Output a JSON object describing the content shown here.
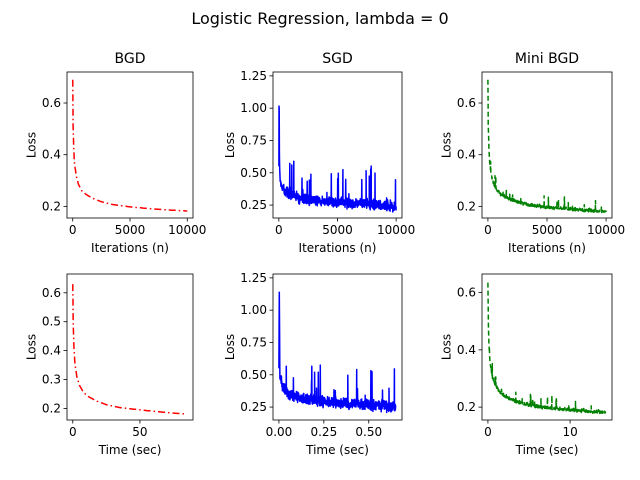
{
  "suptitle": "Logistic Regression, lambda = 0",
  "chart_data": [
    {
      "type": "line",
      "title": "BGD",
      "xlabel": "Iterations (n)",
      "ylabel": "Loss",
      "xlim": [
        -500,
        10500
      ],
      "ylim": [
        0.155,
        0.72
      ],
      "xticks": [
        0,
        5000,
        10000
      ],
      "xtick_labels": [
        "0",
        "5000",
        "10000"
      ],
      "yticks": [
        0.2,
        0.4,
        0.6
      ],
      "ytick_labels": [
        "0.2",
        "0.4",
        "0.6"
      ],
      "color": "#ff0000",
      "dash": "dashdot",
      "noise": 0,
      "x": [
        0,
        30,
        80,
        150,
        300,
        500,
        800,
        1200,
        1800,
        2500,
        3500,
        5000,
        6500,
        8000,
        10000
      ],
      "y": [
        0.69,
        0.52,
        0.43,
        0.37,
        0.32,
        0.285,
        0.26,
        0.245,
        0.23,
        0.218,
        0.207,
        0.198,
        0.192,
        0.187,
        0.182
      ]
    },
    {
      "type": "line",
      "title": "SGD",
      "xlabel": "Iterations (n)",
      "ylabel": "Loss",
      "xlim": [
        -500,
        10500
      ],
      "ylim": [
        0.15,
        1.28
      ],
      "xticks": [
        0,
        5000,
        10000
      ],
      "xtick_labels": [
        "0",
        "5000",
        "10000"
      ],
      "yticks": [
        0.25,
        0.5,
        0.75,
        1.0,
        1.25
      ],
      "ytick_labels": [
        "0.25",
        "0.50",
        "0.75",
        "1.00",
        "1.25"
      ],
      "color": "#0000ff",
      "dash": "solid",
      "noise": 1,
      "x": [
        0,
        20,
        50,
        100,
        200,
        400,
        600,
        900,
        1300,
        1800,
        2500,
        3500,
        5000,
        6500,
        8000,
        10000
      ],
      "y": [
        0.55,
        1.22,
        0.5,
        0.48,
        0.42,
        0.38,
        0.36,
        0.34,
        0.33,
        0.31,
        0.3,
        0.29,
        0.28,
        0.27,
        0.26,
        0.25
      ]
    },
    {
      "type": "line",
      "title": "Mini BGD",
      "xlabel": "Iterations (n)",
      "ylabel": "Loss",
      "xlim": [
        -500,
        10500
      ],
      "ylim": [
        0.155,
        0.72
      ],
      "xticks": [
        0,
        5000,
        10000
      ],
      "xtick_labels": [
        "0",
        "5000",
        "10000"
      ],
      "yticks": [
        0.2,
        0.4,
        0.6
      ],
      "ytick_labels": [
        "0.2",
        "0.4",
        "0.6"
      ],
      "color": "#008000",
      "dash": "dashed",
      "noise": 0.15,
      "x": [
        0,
        30,
        80,
        150,
        300,
        500,
        800,
        1200,
        1800,
        2500,
        3500,
        5000,
        6500,
        8000,
        10000
      ],
      "y": [
        0.69,
        0.52,
        0.43,
        0.37,
        0.32,
        0.285,
        0.26,
        0.245,
        0.23,
        0.218,
        0.207,
        0.198,
        0.192,
        0.187,
        0.182
      ]
    },
    {
      "type": "line",
      "title": "",
      "xlabel": "Time (sec)",
      "ylabel": "Loss",
      "xlim": [
        -4.3,
        89.5
      ],
      "ylim": [
        0.16,
        0.665
      ],
      "xticks": [
        0,
        50
      ],
      "xtick_labels": [
        "0",
        "50"
      ],
      "yticks": [
        0.2,
        0.3,
        0.4,
        0.5,
        0.6
      ],
      "ytick_labels": [
        "0.2",
        "0.3",
        "0.4",
        "0.5",
        "0.6"
      ],
      "color": "#ff0000",
      "dash": "dashdot",
      "noise": 0,
      "x": [
        0,
        0.3,
        0.8,
        1.5,
        3,
        5,
        8,
        12,
        18,
        25,
        35,
        50,
        65,
        85
      ],
      "y": [
        0.63,
        0.5,
        0.42,
        0.36,
        0.31,
        0.28,
        0.255,
        0.24,
        0.225,
        0.213,
        0.203,
        0.195,
        0.188,
        0.18
      ]
    },
    {
      "type": "line",
      "title": "",
      "xlabel": "Time (sec)",
      "ylabel": "Loss",
      "xlim": [
        -0.033,
        0.685
      ],
      "ylim": [
        0.15,
        1.28
      ],
      "xticks": [
        0,
        0.25,
        0.5
      ],
      "xtick_labels": [
        "0.00",
        "0.25",
        "0.50"
      ],
      "yticks": [
        0.25,
        0.5,
        0.75,
        1.0,
        1.25
      ],
      "ytick_labels": [
        "0.25",
        "0.50",
        "0.75",
        "1.00",
        "1.25"
      ],
      "color": "#0000ff",
      "dash": "solid",
      "noise": 1,
      "x": [
        0,
        0.002,
        0.005,
        0.01,
        0.02,
        0.04,
        0.06,
        0.09,
        0.13,
        0.18,
        0.25,
        0.35,
        0.45,
        0.55,
        0.65
      ],
      "y": [
        0.55,
        1.22,
        0.5,
        0.48,
        0.42,
        0.38,
        0.36,
        0.34,
        0.33,
        0.31,
        0.3,
        0.29,
        0.28,
        0.27,
        0.26
      ]
    },
    {
      "type": "line",
      "title": "",
      "xlabel": "Time (sec)",
      "ylabel": "Loss",
      "xlim": [
        -0.72,
        15.1
      ],
      "ylim": [
        0.155,
        0.665
      ],
      "xticks": [
        0,
        10
      ],
      "xtick_labels": [
        "0",
        "10"
      ],
      "yticks": [
        0.2,
        0.4,
        0.6
      ],
      "ytick_labels": [
        "0.2",
        "0.4",
        "0.6"
      ],
      "color": "#008000",
      "dash": "dashed",
      "noise": 0.15,
      "x": [
        0,
        0.05,
        0.12,
        0.25,
        0.5,
        0.9,
        1.4,
        2.1,
        3,
        4.5,
        6.5,
        9,
        11.5,
        14.3
      ],
      "y": [
        0.635,
        0.5,
        0.42,
        0.36,
        0.31,
        0.28,
        0.255,
        0.24,
        0.225,
        0.212,
        0.202,
        0.194,
        0.188,
        0.183
      ]
    }
  ]
}
